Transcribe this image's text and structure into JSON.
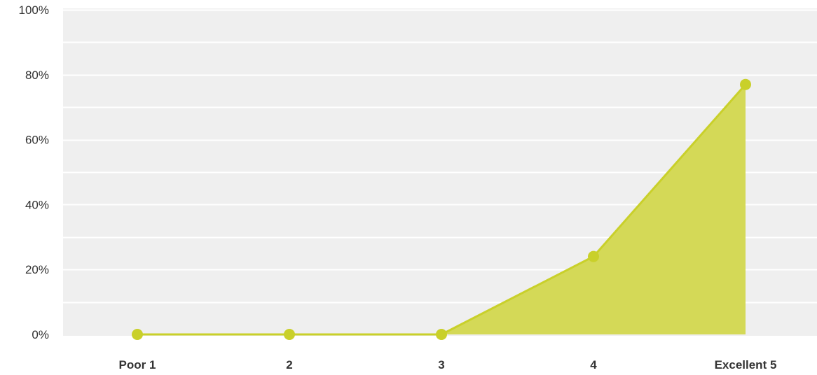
{
  "chart_data": {
    "type": "area",
    "categories": [
      "Poor 1",
      "2",
      "3",
      "4",
      "Excellent 5"
    ],
    "values": [
      0,
      0,
      0,
      24,
      77
    ],
    "y_ticks": [
      "0%",
      "20%",
      "40%",
      "60%",
      "80%",
      "100%"
    ],
    "ylim": [
      0,
      100
    ],
    "y_unit": "%",
    "grid": true,
    "title": "",
    "xlabel": "",
    "ylabel": "",
    "colors": {
      "plot_background": "#efefef",
      "grid_line": "#ffffff",
      "series_fill": "#d4d957",
      "series_line": "#c9d02a",
      "series_marker": "#c9d02a"
    }
  }
}
